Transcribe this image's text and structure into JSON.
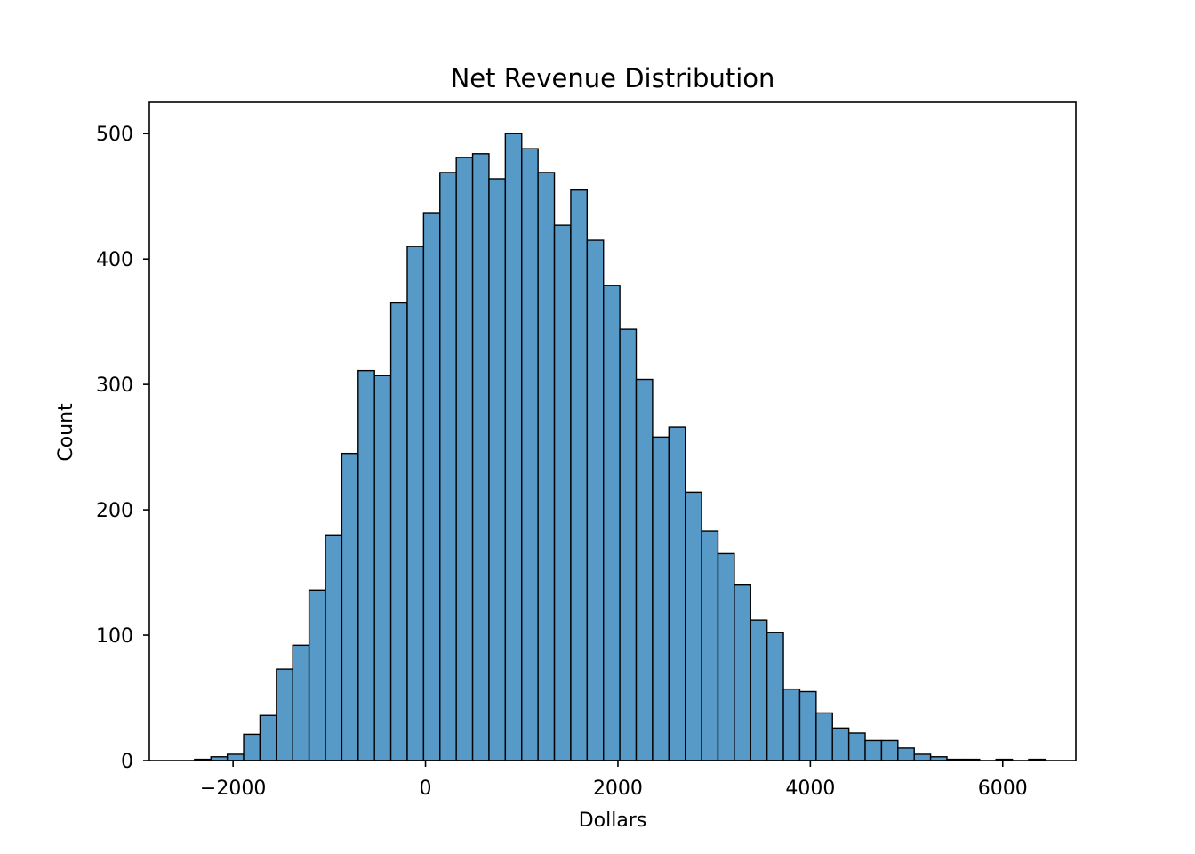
{
  "chart_data": {
    "type": "bar",
    "title": "Net Revenue Distribution",
    "xlabel": "Dollars",
    "ylabel": "Count",
    "xlim": [
      -2870,
      6760
    ],
    "ylim": [
      0,
      525
    ],
    "xticks": [
      -2000,
      0,
      2000,
      4000,
      6000
    ],
    "xtick_labels": [
      "−2000",
      "0",
      "2000",
      "4000",
      "6000"
    ],
    "yticks": [
      0,
      100,
      200,
      300,
      400,
      500
    ],
    "ytick_labels": [
      "0",
      "100",
      "200",
      "300",
      "400",
      "500"
    ],
    "grid": false,
    "bar_color": "#5799c7",
    "edge_color": "#000000",
    "bin_start": -2400,
    "bin_width": 170,
    "values": [
      1,
      3,
      5,
      21,
      36,
      73,
      92,
      136,
      180,
      245,
      311,
      307,
      365,
      410,
      437,
      469,
      481,
      484,
      464,
      500,
      488,
      469,
      427,
      455,
      415,
      379,
      344,
      304,
      258,
      266,
      214,
      183,
      165,
      140,
      112,
      102,
      57,
      55,
      38,
      26,
      22,
      16,
      16,
      10,
      5,
      3,
      1,
      1,
      0,
      1,
      0,
      1
    ]
  }
}
